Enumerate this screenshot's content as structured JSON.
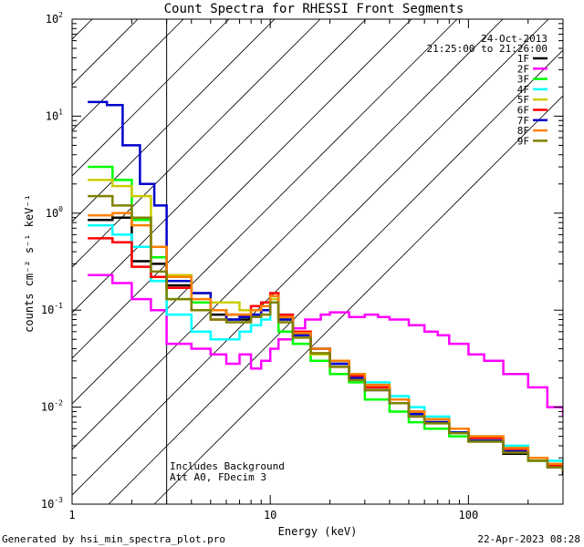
{
  "chart_data": {
    "type": "line",
    "title": "Count Spectra for RHESSI Front Segments",
    "xlabel": "Energy (keV)",
    "ylabel": "counts cm⁻² s⁻¹ keV⁻¹",
    "xscale": "log",
    "yscale": "log",
    "xlim": [
      1,
      300
    ],
    "ylim": [
      0.001,
      100
    ],
    "x_ticks": [
      {
        "value": 1,
        "label": "1"
      },
      {
        "value": 10,
        "label": "10"
      },
      {
        "value": 100,
        "label": "100"
      }
    ],
    "y_ticks": [
      {
        "value": 0.001,
        "base": "10",
        "exp": "-3"
      },
      {
        "value": 0.01,
        "base": "10",
        "exp": "-2"
      },
      {
        "value": 0.1,
        "base": "10",
        "exp": "-1"
      },
      {
        "value": 1,
        "base": "10",
        "exp": "0"
      },
      {
        "value": 10,
        "base": "10",
        "exp": "1"
      },
      {
        "value": 100,
        "base": "10",
        "exp": "2"
      }
    ],
    "legend_position": "top-right",
    "date": "24-Oct-2013",
    "time_range": "21:25:00 to 21:26:00",
    "hatched_region": [
      1,
      3
    ],
    "annotations": [
      "Includes Background",
      "Att A0, FDecim 3"
    ],
    "series": [
      {
        "name": "1F",
        "color": "#000000",
        "points": [
          [
            1.2,
            0.85
          ],
          [
            1.6,
            0.9
          ],
          [
            2.0,
            0.32
          ],
          [
            2.5,
            0.3
          ],
          [
            3.0,
            0.18
          ],
          [
            4.0,
            0.12
          ],
          [
            5.0,
            0.09
          ],
          [
            6.0,
            0.08
          ],
          [
            7.0,
            0.08
          ],
          [
            8.0,
            0.09
          ],
          [
            9.0,
            0.1
          ],
          [
            10.0,
            0.14
          ],
          [
            11.0,
            0.08
          ],
          [
            13.0,
            0.055
          ],
          [
            16.0,
            0.04
          ],
          [
            20.0,
            0.028
          ],
          [
            25.0,
            0.02
          ],
          [
            30.0,
            0.015
          ],
          [
            40.0,
            0.011
          ],
          [
            50.0,
            0.008
          ],
          [
            60.0,
            0.007
          ],
          [
            80.0,
            0.0055
          ],
          [
            100.0,
            0.0045
          ],
          [
            150.0,
            0.0033
          ],
          [
            200.0,
            0.0028
          ],
          [
            250.0,
            0.0024
          ],
          [
            300.0,
            0.002
          ]
        ]
      },
      {
        "name": "2F",
        "color": "#ff00ff",
        "points": [
          [
            1.2,
            0.23
          ],
          [
            1.6,
            0.19
          ],
          [
            2.0,
            0.13
          ],
          [
            2.5,
            0.1
          ],
          [
            3.0,
            0.045
          ],
          [
            4.0,
            0.04
          ],
          [
            5.0,
            0.035
          ],
          [
            6.0,
            0.028
          ],
          [
            7.0,
            0.035
          ],
          [
            8.0,
            0.025
          ],
          [
            9.0,
            0.03
          ],
          [
            10.0,
            0.04
          ],
          [
            11.0,
            0.05
          ],
          [
            13.0,
            0.065
          ],
          [
            15.0,
            0.08
          ],
          [
            18.0,
            0.09
          ],
          [
            20.0,
            0.095
          ],
          [
            25.0,
            0.085
          ],
          [
            30.0,
            0.09
          ],
          [
            35.0,
            0.085
          ],
          [
            40.0,
            0.08
          ],
          [
            50.0,
            0.07
          ],
          [
            60.0,
            0.06
          ],
          [
            70.0,
            0.055
          ],
          [
            80.0,
            0.045
          ],
          [
            100.0,
            0.035
          ],
          [
            120.0,
            0.03
          ],
          [
            150.0,
            0.022
          ],
          [
            200.0,
            0.016
          ],
          [
            250.0,
            0.01
          ],
          [
            300.0,
            0.008
          ]
        ]
      },
      {
        "name": "3F",
        "color": "#00ff00",
        "points": [
          [
            1.2,
            3.0
          ],
          [
            1.6,
            2.2
          ],
          [
            2.0,
            0.85
          ],
          [
            2.5,
            0.35
          ],
          [
            3.0,
            0.13
          ],
          [
            4.0,
            0.12
          ],
          [
            5.0,
            0.1
          ],
          [
            6.0,
            0.09
          ],
          [
            7.0,
            0.09
          ],
          [
            8.0,
            0.1
          ],
          [
            9.0,
            0.1
          ],
          [
            10.0,
            0.12
          ],
          [
            11.0,
            0.06
          ],
          [
            13.0,
            0.045
          ],
          [
            16.0,
            0.03
          ],
          [
            20.0,
            0.022
          ],
          [
            25.0,
            0.018
          ],
          [
            30.0,
            0.012
          ],
          [
            40.0,
            0.009
          ],
          [
            50.0,
            0.007
          ],
          [
            60.0,
            0.006
          ],
          [
            80.0,
            0.005
          ],
          [
            100.0,
            0.0045
          ],
          [
            150.0,
            0.0035
          ],
          [
            200.0,
            0.0028
          ],
          [
            250.0,
            0.0025
          ],
          [
            300.0,
            0.0022
          ]
        ]
      },
      {
        "name": "4F",
        "color": "#00ffff",
        "points": [
          [
            1.2,
            0.75
          ],
          [
            1.6,
            0.6
          ],
          [
            2.0,
            0.45
          ],
          [
            2.5,
            0.2
          ],
          [
            3.0,
            0.09
          ],
          [
            4.0,
            0.06
          ],
          [
            5.0,
            0.05
          ],
          [
            6.0,
            0.05
          ],
          [
            7.0,
            0.06
          ],
          [
            8.0,
            0.07
          ],
          [
            9.0,
            0.08
          ],
          [
            10.0,
            0.13
          ],
          [
            11.0,
            0.09
          ],
          [
            13.0,
            0.06
          ],
          [
            16.0,
            0.04
          ],
          [
            20.0,
            0.03
          ],
          [
            25.0,
            0.022
          ],
          [
            30.0,
            0.018
          ],
          [
            40.0,
            0.013
          ],
          [
            50.0,
            0.01
          ],
          [
            60.0,
            0.008
          ],
          [
            80.0,
            0.006
          ],
          [
            100.0,
            0.005
          ],
          [
            150.0,
            0.004
          ],
          [
            200.0,
            0.003
          ],
          [
            250.0,
            0.0028
          ],
          [
            300.0,
            0.0025
          ]
        ]
      },
      {
        "name": "5F",
        "color": "#cccc00",
        "points": [
          [
            1.2,
            2.2
          ],
          [
            1.6,
            1.9
          ],
          [
            2.0,
            1.5
          ],
          [
            2.5,
            0.45
          ],
          [
            3.0,
            0.23
          ],
          [
            4.0,
            0.15
          ],
          [
            5.0,
            0.12
          ],
          [
            6.0,
            0.12
          ],
          [
            7.0,
            0.1
          ],
          [
            8.0,
            0.1
          ],
          [
            9.0,
            0.11
          ],
          [
            10.0,
            0.13
          ],
          [
            11.0,
            0.08
          ],
          [
            13.0,
            0.055
          ],
          [
            16.0,
            0.035
          ],
          [
            20.0,
            0.026
          ],
          [
            25.0,
            0.02
          ],
          [
            30.0,
            0.016
          ],
          [
            40.0,
            0.012
          ],
          [
            50.0,
            0.009
          ],
          [
            60.0,
            0.0075
          ],
          [
            80.0,
            0.006
          ],
          [
            100.0,
            0.005
          ],
          [
            150.0,
            0.0038
          ],
          [
            200.0,
            0.003
          ],
          [
            250.0,
            0.0026
          ],
          [
            300.0,
            0.0022
          ]
        ]
      },
      {
        "name": "6F",
        "color": "#ff0000",
        "points": [
          [
            1.2,
            0.55
          ],
          [
            1.6,
            0.5
          ],
          [
            2.0,
            0.28
          ],
          [
            2.5,
            0.22
          ],
          [
            3.0,
            0.17
          ],
          [
            4.0,
            0.1
          ],
          [
            5.0,
            0.08
          ],
          [
            6.0,
            0.09
          ],
          [
            7.0,
            0.09
          ],
          [
            8.0,
            0.11
          ],
          [
            9.0,
            0.12
          ],
          [
            10.0,
            0.15
          ],
          [
            11.0,
            0.09
          ],
          [
            13.0,
            0.06
          ],
          [
            16.0,
            0.04
          ],
          [
            20.0,
            0.03
          ],
          [
            25.0,
            0.021
          ],
          [
            30.0,
            0.016
          ],
          [
            40.0,
            0.012
          ],
          [
            50.0,
            0.009
          ],
          [
            60.0,
            0.0075
          ],
          [
            80.0,
            0.006
          ],
          [
            100.0,
            0.0048
          ],
          [
            150.0,
            0.0037
          ],
          [
            200.0,
            0.003
          ],
          [
            250.0,
            0.0025
          ],
          [
            300.0,
            0.0022
          ]
        ]
      },
      {
        "name": "7F",
        "color": "#0000cc",
        "points": [
          [
            1.2,
            14.0
          ],
          [
            1.5,
            13.0
          ],
          [
            1.8,
            5.0
          ],
          [
            2.2,
            2.0
          ],
          [
            2.6,
            1.2
          ],
          [
            3.0,
            0.2
          ],
          [
            4.0,
            0.15
          ],
          [
            5.0,
            0.1
          ],
          [
            6.0,
            0.08
          ],
          [
            7.0,
            0.085
          ],
          [
            8.0,
            0.09
          ],
          [
            9.0,
            0.1
          ],
          [
            10.0,
            0.14
          ],
          [
            11.0,
            0.08
          ],
          [
            13.0,
            0.055
          ],
          [
            16.0,
            0.04
          ],
          [
            20.0,
            0.028
          ],
          [
            25.0,
            0.02
          ],
          [
            30.0,
            0.015
          ],
          [
            40.0,
            0.011
          ],
          [
            50.0,
            0.0085
          ],
          [
            60.0,
            0.007
          ],
          [
            80.0,
            0.0055
          ],
          [
            100.0,
            0.0045
          ],
          [
            150.0,
            0.0035
          ],
          [
            200.0,
            0.003
          ],
          [
            250.0,
            0.0026
          ],
          [
            300.0,
            0.0024
          ]
        ]
      },
      {
        "name": "8F",
        "color": "#ff8000",
        "points": [
          [
            1.2,
            0.95
          ],
          [
            1.6,
            1.0
          ],
          [
            2.0,
            0.75
          ],
          [
            2.5,
            0.45
          ],
          [
            3.0,
            0.22
          ],
          [
            4.0,
            0.13
          ],
          [
            5.0,
            0.1
          ],
          [
            6.0,
            0.09
          ],
          [
            7.0,
            0.09
          ],
          [
            8.0,
            0.1
          ],
          [
            9.0,
            0.11
          ],
          [
            10.0,
            0.14
          ],
          [
            11.0,
            0.085
          ],
          [
            13.0,
            0.058
          ],
          [
            16.0,
            0.04
          ],
          [
            20.0,
            0.03
          ],
          [
            25.0,
            0.022
          ],
          [
            30.0,
            0.017
          ],
          [
            40.0,
            0.012
          ],
          [
            50.0,
            0.009
          ],
          [
            60.0,
            0.0075
          ],
          [
            80.0,
            0.006
          ],
          [
            100.0,
            0.005
          ],
          [
            150.0,
            0.0038
          ],
          [
            200.0,
            0.003
          ],
          [
            250.0,
            0.0026
          ],
          [
            300.0,
            0.0023
          ]
        ]
      },
      {
        "name": "9F",
        "color": "#808000",
        "points": [
          [
            1.2,
            1.5
          ],
          [
            1.6,
            1.2
          ],
          [
            2.0,
            0.9
          ],
          [
            2.5,
            0.25
          ],
          [
            3.0,
            0.13
          ],
          [
            4.0,
            0.1
          ],
          [
            5.0,
            0.08
          ],
          [
            6.0,
            0.075
          ],
          [
            7.0,
            0.075
          ],
          [
            8.0,
            0.085
          ],
          [
            9.0,
            0.09
          ],
          [
            10.0,
            0.12
          ],
          [
            11.0,
            0.075
          ],
          [
            13.0,
            0.052
          ],
          [
            16.0,
            0.036
          ],
          [
            20.0,
            0.026
          ],
          [
            25.0,
            0.019
          ],
          [
            30.0,
            0.015
          ],
          [
            40.0,
            0.011
          ],
          [
            50.0,
            0.008
          ],
          [
            60.0,
            0.0068
          ],
          [
            80.0,
            0.0054
          ],
          [
            100.0,
            0.0044
          ],
          [
            150.0,
            0.0034
          ],
          [
            200.0,
            0.0028
          ],
          [
            250.0,
            0.0024
          ],
          [
            300.0,
            0.0022
          ]
        ]
      }
    ]
  },
  "footer": {
    "generated_by": "Generated by hsi_min_spectra_plot.pro",
    "timestamp": "22-Apr-2023 08:28"
  }
}
